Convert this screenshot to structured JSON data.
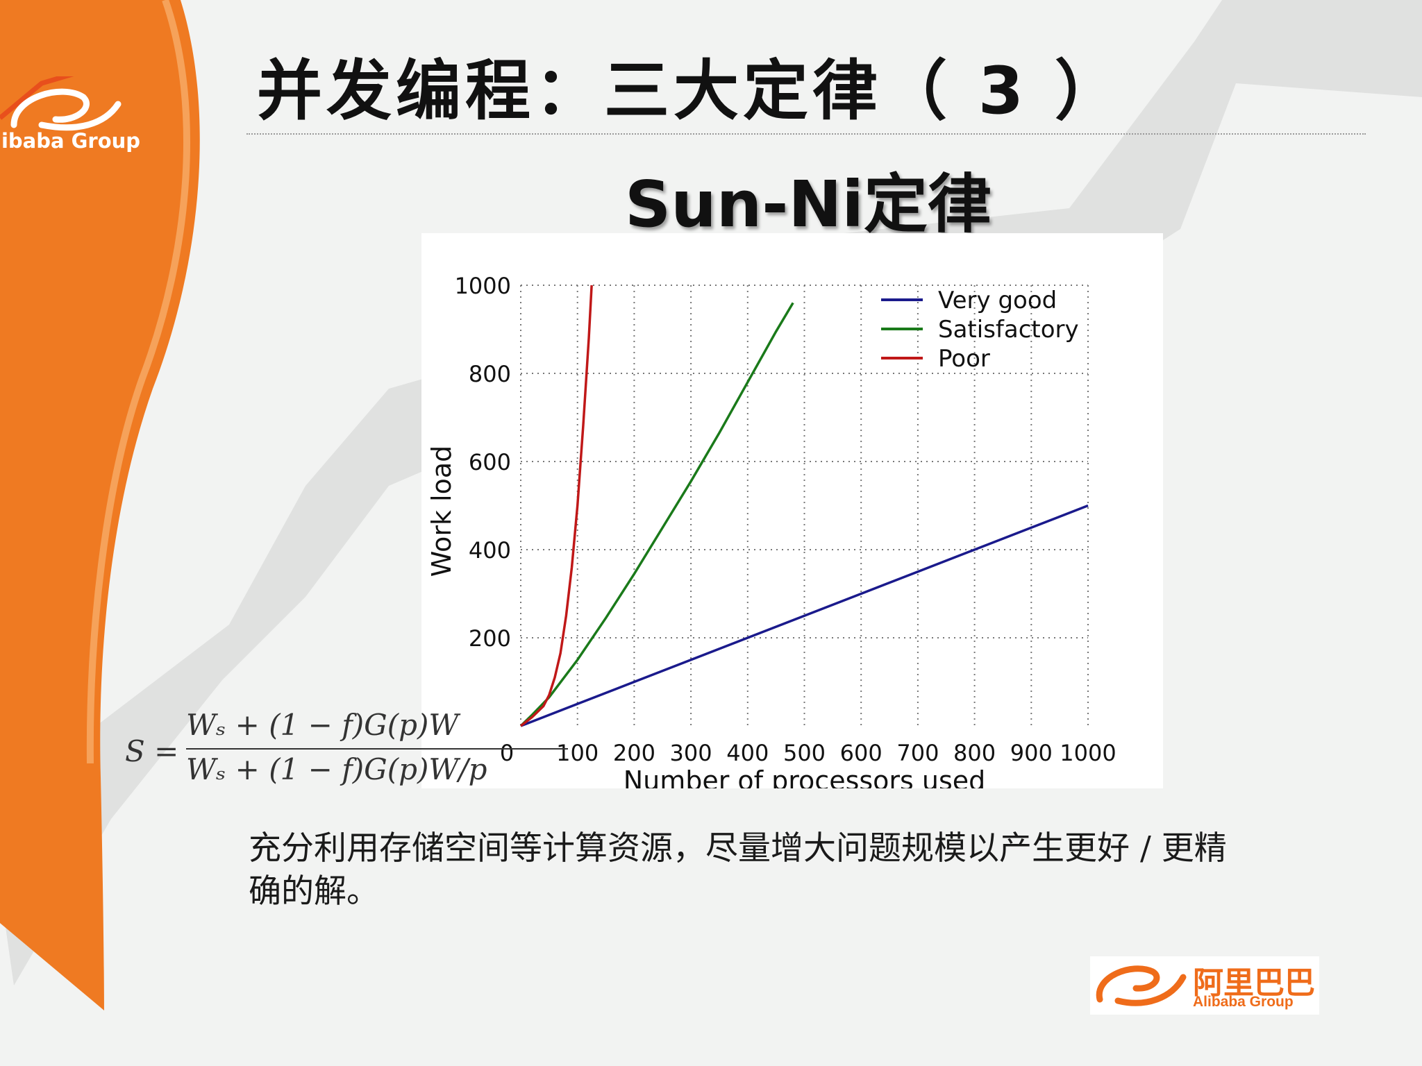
{
  "header": {
    "title": "并发编程：三大定律（ 3 ）",
    "subtitle": "Sun-Ni定律"
  },
  "brand": {
    "top_logo_text": "libaba Group",
    "bottom_logo_cn": "阿里巴巴",
    "bottom_logo_en": "Alibaba Group",
    "accent_color": "#ef7a22"
  },
  "formula": {
    "lhs": "S =",
    "numerator": "Wₛ + (1 − f)G(p)W",
    "denominator": "Wₛ + (1 − f)G(p)W/p"
  },
  "chart_data": {
    "type": "line",
    "xlabel": "Number of processors used",
    "ylabel": "Work load",
    "xlim": [
      0,
      1000
    ],
    "ylim": [
      0,
      1000
    ],
    "x_ticks": [
      "0",
      "100",
      "200",
      "300",
      "400",
      "500",
      "600",
      "700",
      "800",
      "900",
      "1000"
    ],
    "y_ticks": [
      "",
      "200",
      "400",
      "600",
      "800",
      "1000"
    ],
    "grid": true,
    "legend_position": "top-right",
    "series": [
      {
        "name": "Very good",
        "color": "#1a1a8c",
        "x": [
          0,
          100,
          200,
          300,
          400,
          500,
          600,
          700,
          800,
          900,
          1000
        ],
        "y": [
          0,
          50,
          100,
          150,
          200,
          250,
          300,
          350,
          400,
          450,
          500
        ]
      },
      {
        "name": "Satisfactory",
        "color": "#1a7a1a",
        "x": [
          0,
          20,
          50,
          100,
          150,
          200,
          250,
          300,
          350,
          400,
          450,
          480
        ],
        "y": [
          0,
          25,
          65,
          150,
          245,
          345,
          450,
          555,
          665,
          780,
          895,
          960
        ]
      },
      {
        "name": "Poor",
        "color": "#c01818",
        "x": [
          0,
          20,
          40,
          50,
          60,
          70,
          80,
          90,
          100,
          110,
          120,
          125
        ],
        "y": [
          0,
          20,
          45,
          70,
          110,
          165,
          250,
          360,
          500,
          680,
          880,
          1000
        ]
      }
    ]
  },
  "body": {
    "text": "充分利用存储空间等计算资源，尽量增大问题规模以产生更好 / 更精确的解。"
  }
}
